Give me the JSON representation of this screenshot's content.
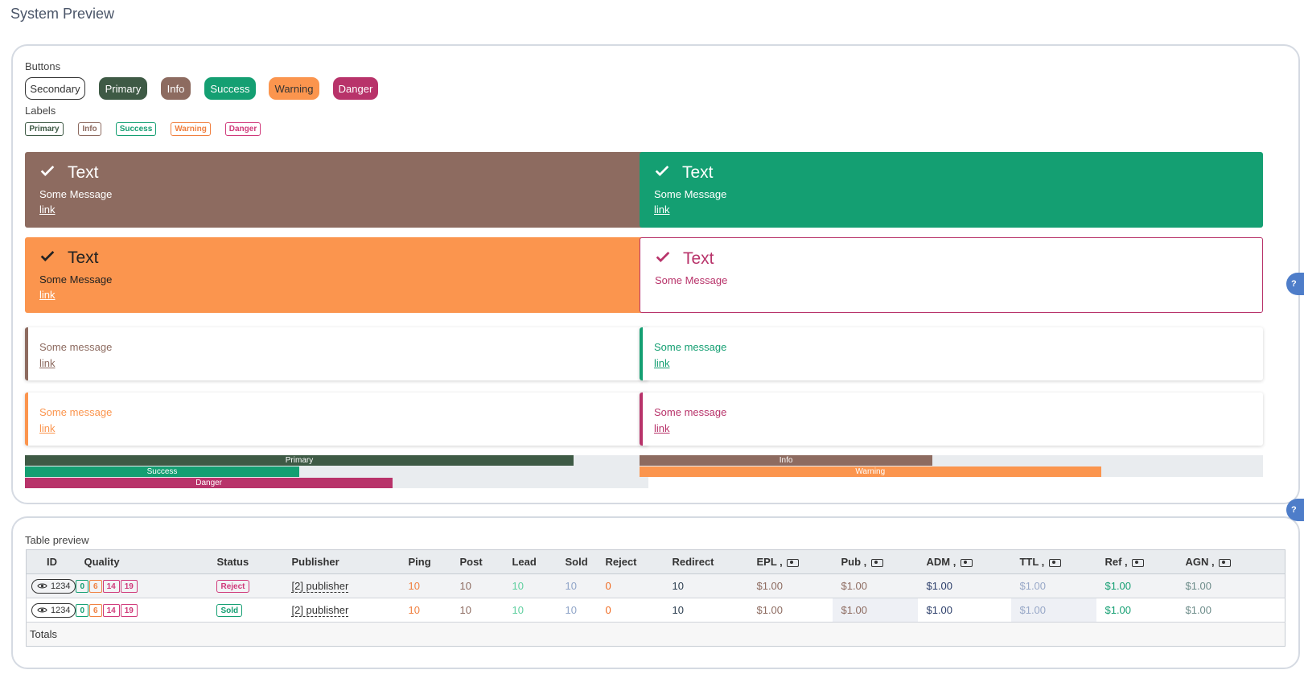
{
  "page": {
    "title": "System Preview"
  },
  "buttons": {
    "section_label": "Buttons",
    "items": [
      {
        "label": "Secondary"
      },
      {
        "label": "Primary",
        "color": "#3e5a45"
      },
      {
        "label": "Info",
        "color": "#8d6b60"
      },
      {
        "label": "Success",
        "color": "#149f72"
      },
      {
        "label": "Warning",
        "color": "#fb954e"
      },
      {
        "label": "Danger",
        "color": "#b8336a"
      }
    ]
  },
  "labels": {
    "section_label": "Labels",
    "items": [
      {
        "label": "Primary",
        "color": "#3e5a45"
      },
      {
        "label": "Info",
        "color": "#8d6b60"
      },
      {
        "label": "Success",
        "color": "#149f72"
      },
      {
        "label": "Warning",
        "color": "#f08040"
      },
      {
        "label": "Danger",
        "color": "#d03a7a"
      }
    ]
  },
  "alerts": [
    {
      "title": "Text",
      "message": "Some Message",
      "link": "link",
      "color": "#8d6b60",
      "icon": "check-icon"
    },
    {
      "title": "Text",
      "message": "Some Message",
      "link": "link",
      "color": "#149f72",
      "icon": "check-icon"
    },
    {
      "title": "Text",
      "message": "Some Message",
      "link": "link",
      "color": "#fb954e",
      "icon": "check-icon"
    },
    {
      "title": "Text",
      "message": "Some Message",
      "color": "#b8336a",
      "icon": "check-icon"
    }
  ],
  "notes": [
    {
      "message": "Some message",
      "link": "link",
      "color": "#8d6b60"
    },
    {
      "message": "Some message",
      "link": "link",
      "color": "#149f72"
    },
    {
      "message": "Some message",
      "link": "link",
      "color": "#fb954e"
    },
    {
      "message": "Some message",
      "link": "link",
      "color": "#b8336a"
    }
  ],
  "progress": {
    "left": [
      {
        "label": "Primary",
        "percent": 88,
        "color": "#3e5a45"
      },
      {
        "label": "Success",
        "percent": 44,
        "color": "#149f72"
      },
      {
        "label": "Danger",
        "percent": 59,
        "color": "#b8336a"
      }
    ],
    "right": [
      {
        "label": "Info",
        "percent": 47,
        "color": "#8d6b60"
      },
      {
        "label": "Warning",
        "percent": 74,
        "color": "#fb954e"
      }
    ]
  },
  "table": {
    "section_label": "Table preview",
    "headers": [
      "ID",
      "Quality",
      "Status",
      "Publisher",
      "Ping",
      "Post",
      "Lead",
      "Sold",
      "Reject",
      "Redirect",
      "EPL ,",
      "Pub ,",
      "ADM ,",
      "TTL ,",
      "Ref ,",
      "AGN ,"
    ],
    "rows": [
      {
        "id": "1234",
        "quality": [
          "0",
          "6",
          "14",
          "19"
        ],
        "status": "Reject",
        "status_color": "#d03a7a",
        "publisher": "[2] publisher",
        "ping": "10",
        "post": "10",
        "lead": "10",
        "sold": "10",
        "reject": "0",
        "redirect": "10",
        "epl": "$1.00",
        "pub": "$1.00",
        "adm": "$1.00",
        "ttl": "$1.00",
        "ref": "$1.00",
        "agn": "$1.00"
      },
      {
        "id": "1234",
        "quality": [
          "0",
          "6",
          "14",
          "19"
        ],
        "status": "Sold",
        "status_color": "#149f72",
        "publisher": "[2] publisher",
        "ping": "10",
        "post": "10",
        "lead": "10",
        "sold": "10",
        "reject": "0",
        "redirect": "10",
        "epl": "$1.00",
        "pub": "$1.00",
        "adm": "$1.00",
        "ttl": "$1.00",
        "ref": "$1.00",
        "agn": "$1.00"
      }
    ],
    "totals_label": "Totals"
  },
  "colors": {
    "quality": [
      "#149f72",
      "#f08040",
      "#d03a7a",
      "#d03a7a"
    ],
    "ping": "#f08040",
    "post": "#8d6b60",
    "lead": "#5fcf9f",
    "sold": "#8fa4c8",
    "reject": "#f06a20",
    "redirect": "#2c3e50",
    "epl": "#8d6b60",
    "pub": "#8d6b60",
    "adm": "#2c3e6a",
    "ttl": "#98a8c8",
    "ref": "#149f72",
    "agn": "#6d8c8a"
  }
}
